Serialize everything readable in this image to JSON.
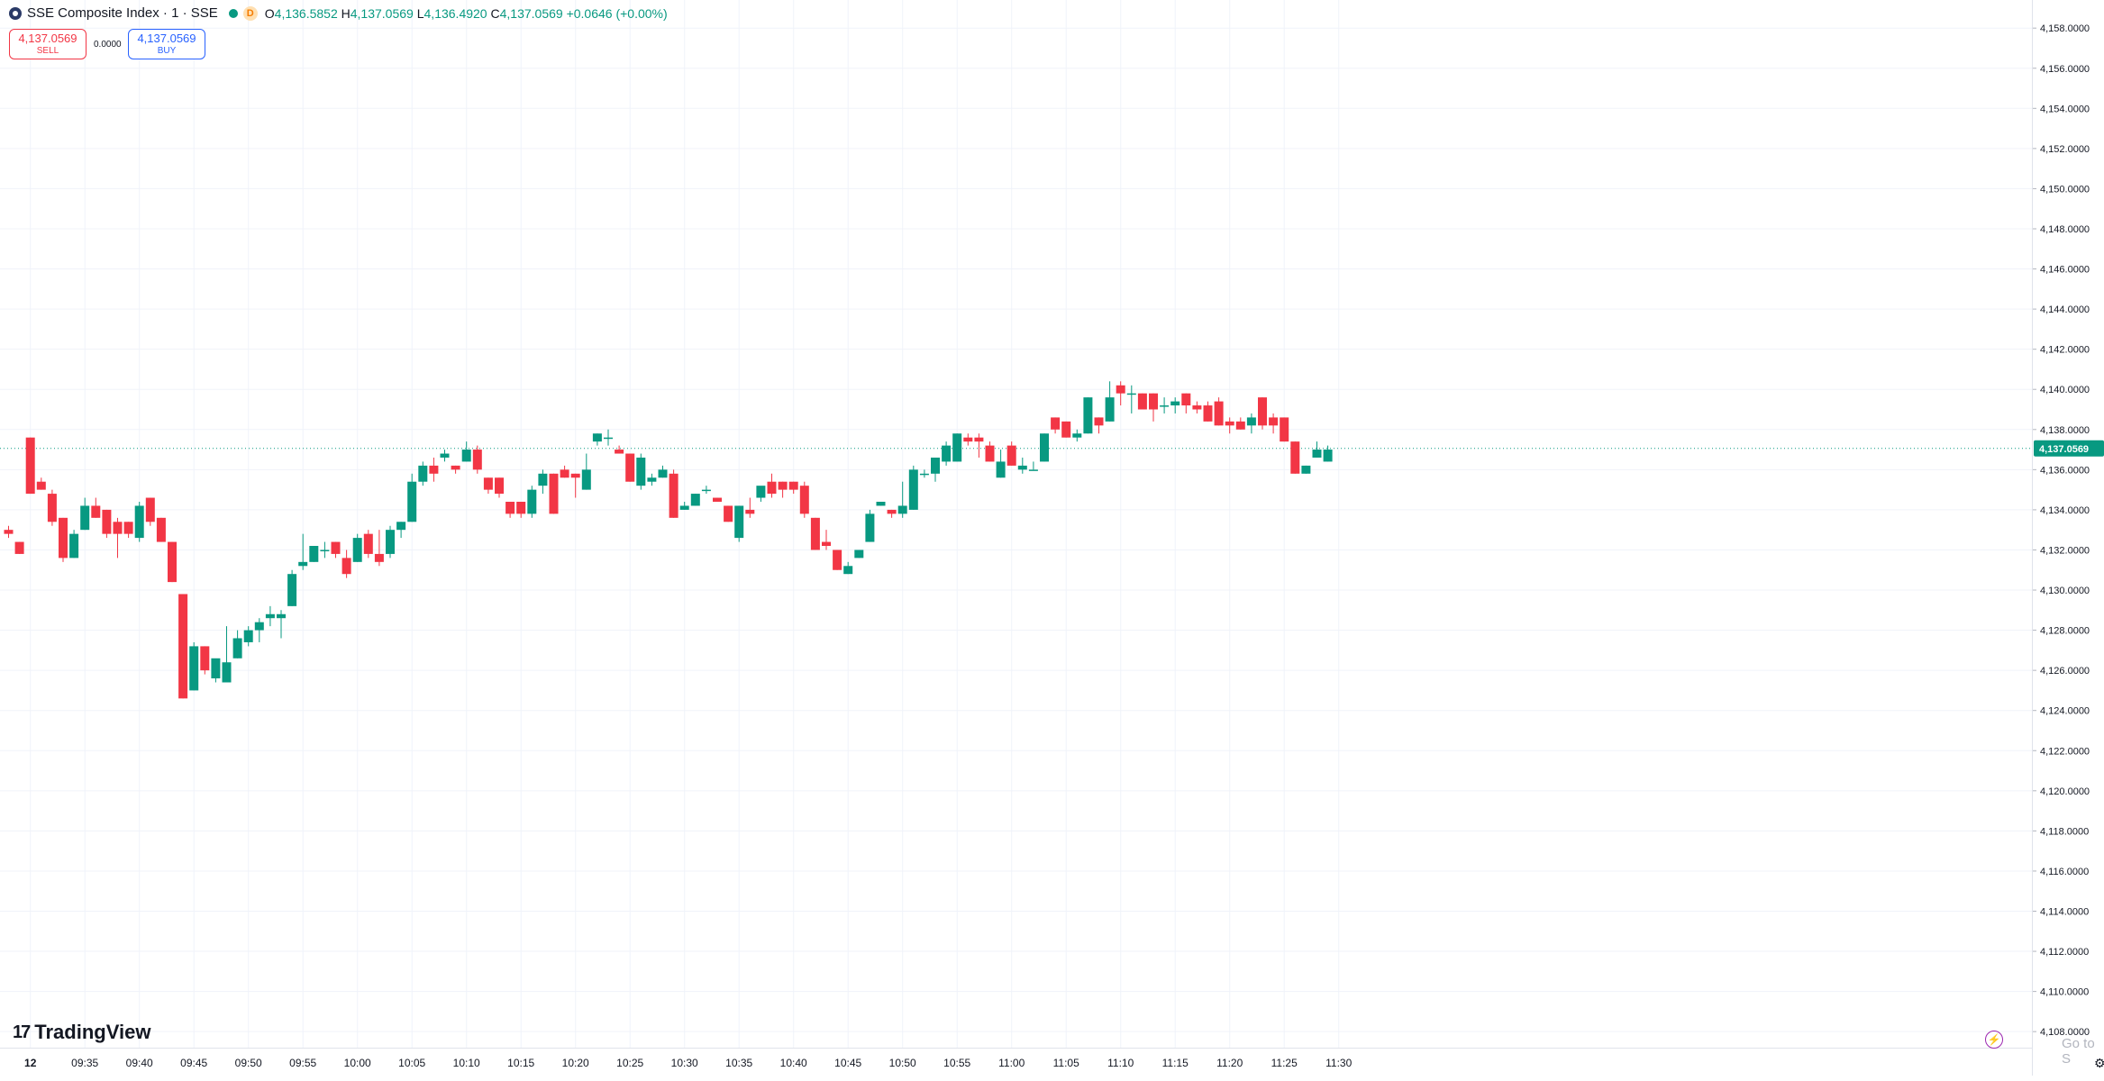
{
  "header": {
    "symbol_title": "SSE Composite Index · 1 · SSE",
    "timeframe_badge": "D",
    "open_label": "O",
    "open": "4,136.5852",
    "high_label": "H",
    "high": "4,137.0569",
    "low_label": "L",
    "low": "4,136.4920",
    "close_label": "C",
    "close": "4,137.0569",
    "change": "+0.0646 (+0.00%)"
  },
  "trade": {
    "sell_price": "4,137.0569",
    "sell_label": "SELL",
    "spread": "0.0000",
    "buy_price": "4,137.0569",
    "buy_label": "BUY"
  },
  "brand": {
    "name": "TradingView"
  },
  "overlay": {
    "goto_text": "Go to S"
  },
  "colors": {
    "up": "#089981",
    "down": "#f23645",
    "grid": "#f0f3fa",
    "axis_text": "#131722",
    "current_price_bg": "#089981"
  },
  "icons": {
    "symbol": "sse-logo-icon",
    "live": "live-dot-icon",
    "bolt": "lightning-icon",
    "settings": "gear-icon"
  },
  "chart_data": {
    "type": "candlestick",
    "y_axis": {
      "ylim": [
        4107.2,
        4159.4
      ],
      "ticks": [
        4108,
        4110,
        4112,
        4114,
        4116,
        4118,
        4120,
        4122,
        4124,
        4126,
        4128,
        4130,
        4132,
        4134,
        4136,
        4138,
        4140,
        4142,
        4144,
        4146,
        4148,
        4150,
        4152,
        4154,
        4156,
        4158
      ],
      "tick_labels": [
        "4,108.0000",
        "4,110.0000",
        "4,112.0000",
        "4,114.0000",
        "4,116.0000",
        "4,118.0000",
        "4,120.0000",
        "4,122.0000",
        "4,124.0000",
        "4,126.0000",
        "4,128.0000",
        "4,130.0000",
        "4,132.0000",
        "4,134.0000",
        "4,136.0000",
        "4,138.0000",
        "4,140.0000",
        "4,142.0000",
        "4,144.0000",
        "4,146.0000",
        "4,148.0000",
        "4,150.0000",
        "4,152.0000",
        "4,154.0000",
        "4,156.0000",
        "4,158.0000"
      ]
    },
    "x_axis": {
      "tick_labels": [
        "12",
        "09:35",
        "09:40",
        "09:45",
        "09:50",
        "09:55",
        "10:00",
        "10:05",
        "10:10",
        "10:15",
        "10:20",
        "10:25",
        "10:30",
        "10:35",
        "10:40",
        "10:45",
        "10:50",
        "10:55",
        "11:00",
        "11:05",
        "11:10",
        "11:15",
        "11:20",
        "11:25",
        "11:30"
      ],
      "tick_index": [
        2,
        7,
        12,
        17,
        22,
        27,
        32,
        37,
        42,
        47,
        52,
        57,
        62,
        67,
        72,
        77,
        82,
        87,
        92,
        97,
        102,
        107,
        112,
        117,
        122
      ]
    },
    "last_price": 4137.0569,
    "last_price_label": "4,137.0569",
    "candles": [
      [
        4133.0,
        4133.2,
        4132.6,
        4132.8
      ],
      [
        4132.4,
        4132.4,
        4131.8,
        4131.8
      ],
      [
        4137.6,
        4137.6,
        4134.8,
        4134.8
      ],
      [
        4135.4,
        4135.6,
        4135.0,
        4135.0
      ],
      [
        4134.8,
        4135.0,
        4133.2,
        4133.4
      ],
      [
        4133.6,
        4133.6,
        4131.4,
        4131.6
      ],
      [
        4131.6,
        4133.0,
        4131.6,
        4132.8
      ],
      [
        4133.0,
        4134.6,
        4133.0,
        4134.2
      ],
      [
        4134.2,
        4134.6,
        4133.6,
        4133.6
      ],
      [
        4134.0,
        4134.0,
        4132.6,
        4132.8
      ],
      [
        4133.4,
        4133.6,
        4131.6,
        4132.8
      ],
      [
        4133.4,
        4133.4,
        4132.6,
        4132.8
      ],
      [
        4132.6,
        4134.4,
        4132.4,
        4134.2
      ],
      [
        4134.6,
        4134.6,
        4133.2,
        4133.4
      ],
      [
        4133.6,
        4133.6,
        4132.4,
        4132.4
      ],
      [
        4132.4,
        4132.4,
        4130.4,
        4130.4
      ],
      [
        4129.8,
        4129.8,
        4124.6,
        4124.6
      ],
      [
        4125.0,
        4127.4,
        4125.0,
        4127.2
      ],
      [
        4127.2,
        4127.2,
        4125.8,
        4126.0
      ],
      [
        4125.6,
        4126.4,
        4125.4,
        4126.6
      ],
      [
        4125.4,
        4128.2,
        4125.4,
        4126.4
      ],
      [
        4126.6,
        4128.0,
        4126.6,
        4127.6
      ],
      [
        4127.4,
        4128.2,
        4127.2,
        4128.0
      ],
      [
        4128.0,
        4128.6,
        4127.4,
        4128.4
      ],
      [
        4128.6,
        4129.2,
        4128.2,
        4128.8
      ],
      [
        4128.6,
        4129.0,
        4127.6,
        4128.8
      ],
      [
        4129.2,
        4131.0,
        4129.2,
        4130.8
      ],
      [
        4131.2,
        4132.8,
        4131.0,
        4131.4
      ],
      [
        4131.4,
        4132.2,
        4131.4,
        4132.2
      ],
      [
        4132.0,
        4132.4,
        4131.6,
        4132.0
      ],
      [
        4132.4,
        4132.4,
        4131.6,
        4131.8
      ],
      [
        4131.6,
        4132.0,
        4130.6,
        4130.8
      ],
      [
        4131.4,
        4132.8,
        4131.4,
        4132.6
      ],
      [
        4132.8,
        4133.0,
        4131.6,
        4131.8
      ],
      [
        4131.8,
        4133.0,
        4131.2,
        4131.4
      ],
      [
        4131.8,
        4133.2,
        4131.6,
        4133.0
      ],
      [
        4133.0,
        4133.4,
        4132.6,
        4133.4
      ],
      [
        4133.4,
        4135.8,
        4133.4,
        4135.4
      ],
      [
        4135.4,
        4136.4,
        4135.2,
        4136.2
      ],
      [
        4136.2,
        4136.6,
        4135.4,
        4135.8
      ],
      [
        4136.6,
        4137.0,
        4136.4,
        4136.8
      ],
      [
        4136.2,
        4136.2,
        4135.8,
        4136.0
      ],
      [
        4136.4,
        4137.4,
        4136.4,
        4137.0
      ],
      [
        4137.0,
        4137.2,
        4135.8,
        4136.0
      ],
      [
        4135.6,
        4135.6,
        4134.8,
        4135.0
      ],
      [
        4135.6,
        4135.6,
        4134.6,
        4134.8
      ],
      [
        4134.4,
        4134.4,
        4133.6,
        4133.8
      ],
      [
        4134.4,
        4134.4,
        4133.6,
        4133.8
      ],
      [
        4133.8,
        4135.2,
        4133.6,
        4135.0
      ],
      [
        4135.2,
        4136.0,
        4134.8,
        4135.8
      ],
      [
        4135.8,
        4135.8,
        4133.8,
        4133.8
      ],
      [
        4136.0,
        4136.2,
        4135.6,
        4135.6
      ],
      [
        4135.8,
        4135.8,
        4134.6,
        4135.6
      ],
      [
        4135.0,
        4136.8,
        4135.0,
        4136.0
      ],
      [
        4137.4,
        4137.8,
        4137.2,
        4137.8
      ],
      [
        4137.6,
        4138.0,
        4137.2,
        4137.6
      ],
      [
        4137.0,
        4137.2,
        4136.8,
        4136.8
      ],
      [
        4136.8,
        4136.8,
        4135.4,
        4135.4
      ],
      [
        4135.2,
        4136.8,
        4135.0,
        4136.6
      ],
      [
        4135.4,
        4135.8,
        4135.2,
        4135.6
      ],
      [
        4135.6,
        4136.2,
        4135.6,
        4136.0
      ],
      [
        4135.8,
        4136.0,
        4133.6,
        4133.6
      ],
      [
        4134.0,
        4134.4,
        4134.0,
        4134.2
      ],
      [
        4134.2,
        4134.8,
        4134.2,
        4134.8
      ],
      [
        4135.0,
        4135.2,
        4134.8,
        4135.0
      ],
      [
        4134.6,
        4134.6,
        4134.4,
        4134.4
      ],
      [
        4134.2,
        4134.2,
        4133.4,
        4133.4
      ],
      [
        4132.6,
        4134.2,
        4132.4,
        4134.2
      ],
      [
        4134.0,
        4134.6,
        4133.6,
        4133.8
      ],
      [
        4134.6,
        4135.0,
        4134.4,
        4135.2
      ],
      [
        4135.4,
        4135.8,
        4134.6,
        4134.8
      ],
      [
        4135.4,
        4135.4,
        4134.6,
        4135.0
      ],
      [
        4135.4,
        4135.4,
        4134.8,
        4135.0
      ],
      [
        4135.2,
        4135.4,
        4133.6,
        4133.8
      ],
      [
        4133.6,
        4133.6,
        4132.0,
        4132.0
      ],
      [
        4132.4,
        4133.0,
        4132.0,
        4132.2
      ],
      [
        4132.0,
        4132.0,
        4131.0,
        4131.0
      ],
      [
        4130.8,
        4131.4,
        4130.8,
        4131.2
      ],
      [
        4131.6,
        4132.0,
        4131.6,
        4132.0
      ],
      [
        4132.4,
        4134.0,
        4132.4,
        4133.8
      ],
      [
        4134.2,
        4134.4,
        4134.2,
        4134.4
      ],
      [
        4134.0,
        4134.0,
        4133.6,
        4133.8
      ],
      [
        4133.8,
        4135.4,
        4133.6,
        4134.2
      ],
      [
        4134.0,
        4136.2,
        4134.0,
        4136.0
      ],
      [
        4135.8,
        4136.0,
        4135.6,
        4135.8
      ],
      [
        4135.8,
        4136.4,
        4135.4,
        4136.6
      ],
      [
        4136.4,
        4137.4,
        4136.2,
        4137.2
      ],
      [
        4136.4,
        4137.8,
        4136.4,
        4137.8
      ],
      [
        4137.6,
        4137.8,
        4137.2,
        4137.4
      ],
      [
        4137.6,
        4137.8,
        4136.6,
        4137.4
      ],
      [
        4137.2,
        4137.4,
        4136.4,
        4136.4
      ],
      [
        4135.6,
        4137.0,
        4135.6,
        4136.4
      ],
      [
        4137.2,
        4137.4,
        4136.2,
        4136.2
      ],
      [
        4136.0,
        4136.6,
        4135.8,
        4136.2
      ],
      [
        4136.0,
        4136.4,
        4136.0,
        4136.0
      ],
      [
        4136.4,
        4137.8,
        4136.4,
        4137.8
      ],
      [
        4138.6,
        4138.6,
        4137.8,
        4138.0
      ],
      [
        4138.4,
        4138.4,
        4137.6,
        4137.6
      ],
      [
        4137.6,
        4138.0,
        4137.4,
        4137.8
      ],
      [
        4137.8,
        4139.6,
        4137.8,
        4139.6
      ],
      [
        4138.6,
        4138.6,
        4137.8,
        4138.2
      ],
      [
        4138.4,
        4140.4,
        4138.4,
        4139.6
      ],
      [
        4140.2,
        4140.4,
        4139.2,
        4139.8
      ],
      [
        4139.8,
        4140.2,
        4138.8,
        4139.8
      ],
      [
        4139.8,
        4139.8,
        4139.0,
        4139.0
      ],
      [
        4139.8,
        4139.8,
        4138.4,
        4139.0
      ],
      [
        4139.2,
        4139.6,
        4138.8,
        4139.2
      ],
      [
        4139.2,
        4139.6,
        4138.8,
        4139.4
      ],
      [
        4139.8,
        4139.8,
        4138.8,
        4139.2
      ],
      [
        4139.2,
        4139.4,
        4138.8,
        4139.0
      ],
      [
        4139.2,
        4139.4,
        4138.4,
        4138.4
      ],
      [
        4139.4,
        4139.6,
        4138.2,
        4138.2
      ],
      [
        4138.4,
        4138.6,
        4137.8,
        4138.2
      ],
      [
        4138.4,
        4138.6,
        4138.0,
        4138.0
      ],
      [
        4138.2,
        4138.8,
        4137.8,
        4138.6
      ],
      [
        4139.6,
        4139.6,
        4138.0,
        4138.2
      ],
      [
        4138.6,
        4138.8,
        4137.8,
        4138.2
      ],
      [
        4138.6,
        4138.6,
        4137.4,
        4137.4
      ],
      [
        4137.4,
        4137.4,
        4135.8,
        4135.8
      ],
      [
        4135.8,
        4136.2,
        4135.8,
        4136.2
      ],
      [
        4136.6,
        4137.4,
        4136.6,
        4137.0
      ],
      [
        4136.4,
        4137.2,
        4136.4,
        4137.0
      ]
    ]
  }
}
